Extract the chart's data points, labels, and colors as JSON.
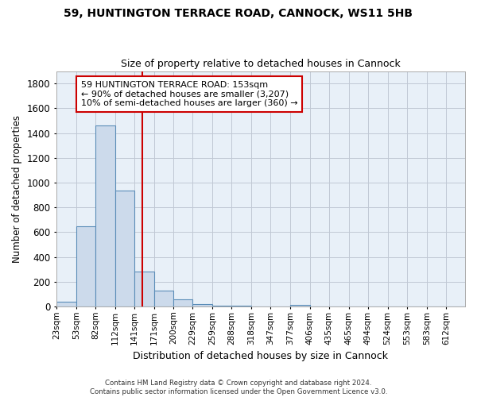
{
  "title1": "59, HUNTINGTON TERRACE ROAD, CANNOCK, WS11 5HB",
  "title2": "Size of property relative to detached houses in Cannock",
  "xlabel": "Distribution of detached houses by size in Cannock",
  "ylabel": "Number of detached properties",
  "footer": "Contains HM Land Registry data © Crown copyright and database right 2024.\nContains public sector information licensed under the Open Government Licence v3.0.",
  "bar_labels": [
    "23sqm",
    "53sqm",
    "82sqm",
    "112sqm",
    "141sqm",
    "171sqm",
    "200sqm",
    "229sqm",
    "259sqm",
    "288sqm",
    "318sqm",
    "347sqm",
    "377sqm",
    "406sqm",
    "435sqm",
    "465sqm",
    "494sqm",
    "524sqm",
    "553sqm",
    "583sqm",
    "612sqm"
  ],
  "bar_values": [
    38,
    648,
    1462,
    935,
    280,
    128,
    58,
    18,
    8,
    5,
    3,
    2,
    12,
    0,
    0,
    0,
    0,
    0,
    0,
    0,
    0
  ],
  "bar_color": "#ccdaeb",
  "bar_edge_color": "#5b8db8",
  "property_line_x": 153,
  "property_line_color": "#cc0000",
  "annotation_text": "59 HUNTINGTON TERRACE ROAD: 153sqm\n← 90% of detached houses are smaller (3,207)\n10% of semi-detached houses are larger (360) →",
  "annotation_box_color": "#ffffff",
  "annotation_box_edge": "#cc0000",
  "ylim": [
    0,
    1900
  ],
  "yticks": [
    0,
    200,
    400,
    600,
    800,
    1000,
    1200,
    1400,
    1600,
    1800
  ],
  "bg_color": "#ffffff",
  "plot_bg_color": "#e8f0f8",
  "bin_edges": [
    23,
    53,
    82,
    112,
    141,
    171,
    200,
    229,
    259,
    288,
    318,
    347,
    377,
    406,
    435,
    465,
    494,
    524,
    553,
    583,
    612,
    641
  ]
}
